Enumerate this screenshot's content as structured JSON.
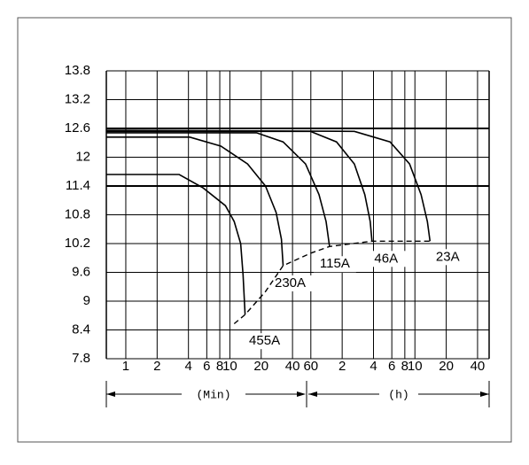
{
  "chart_data": {
    "type": "line",
    "xlog": true,
    "xlim": [
      0.65,
      3100
    ],
    "ylim": [
      7.8,
      13.8
    ],
    "xticks": [
      1,
      2,
      4,
      6,
      8,
      10,
      20,
      40,
      60,
      {
        "value": 120,
        "label": "2"
      },
      {
        "value": 240,
        "label": "4"
      },
      {
        "value": 360,
        "label": "6"
      },
      {
        "value": 480,
        "label": "8"
      },
      {
        "value": 600,
        "label": "10"
      },
      {
        "value": 1200,
        "label": "20"
      },
      {
        "value": 2400,
        "label": "40"
      }
    ],
    "yticks": [
      13.8,
      13.2,
      12.6,
      12.0,
      11.4,
      10.8,
      10.2,
      9.6,
      9.0,
      8.4,
      7.8
    ],
    "grid": true,
    "bold_y": [
      12.6,
      11.4
    ],
    "x_units": [
      "(Min)",
      "(h)"
    ],
    "series": [
      {
        "name": "455A",
        "color": "#000000",
        "x": [
          0.65,
          3.26,
          5.54,
          9.06,
          11.0,
          12.7,
          13.4,
          14.0
        ],
        "values": [
          11.64,
          11.64,
          11.36,
          10.99,
          10.66,
          10.2,
          9.55,
          8.72
        ]
      },
      {
        "name": "230A",
        "color": "#000000",
        "x": [
          0.65,
          4.12,
          8.2,
          14.8,
          22.0,
          27.8,
          31.3,
          32.5
        ],
        "values": [
          12.42,
          12.42,
          12.23,
          11.86,
          11.4,
          10.85,
          10.29,
          9.74
        ]
      },
      {
        "name": "115A",
        "color": "#000000",
        "x": [
          0.65,
          18.0,
          32.5,
          53.3,
          71.8,
          84.1,
          90.7
        ],
        "values": [
          12.51,
          12.51,
          12.32,
          11.86,
          11.22,
          10.66,
          10.14
        ]
      },
      {
        "name": "46A",
        "color": "#000000",
        "x": [
          0.65,
          59.3,
          106,
          157,
          198,
          223,
          232
        ],
        "values": [
          12.54,
          12.54,
          12.32,
          11.86,
          11.22,
          10.66,
          10.25
        ]
      },
      {
        "name": "23A",
        "color": "#000000",
        "x": [
          0.65,
          157,
          346,
          533,
          688,
          790,
          838
        ],
        "values": [
          12.56,
          12.54,
          12.32,
          11.86,
          11.22,
          10.66,
          10.25
        ]
      }
    ],
    "end_line": {
      "x": [
        11.0,
        14.0,
        22.0,
        32.5,
        60,
        90.7,
        232,
        838
      ],
      "values": [
        8.53,
        8.72,
        9.2,
        9.74,
        10.0,
        10.14,
        10.25,
        10.25
      ]
    }
  }
}
